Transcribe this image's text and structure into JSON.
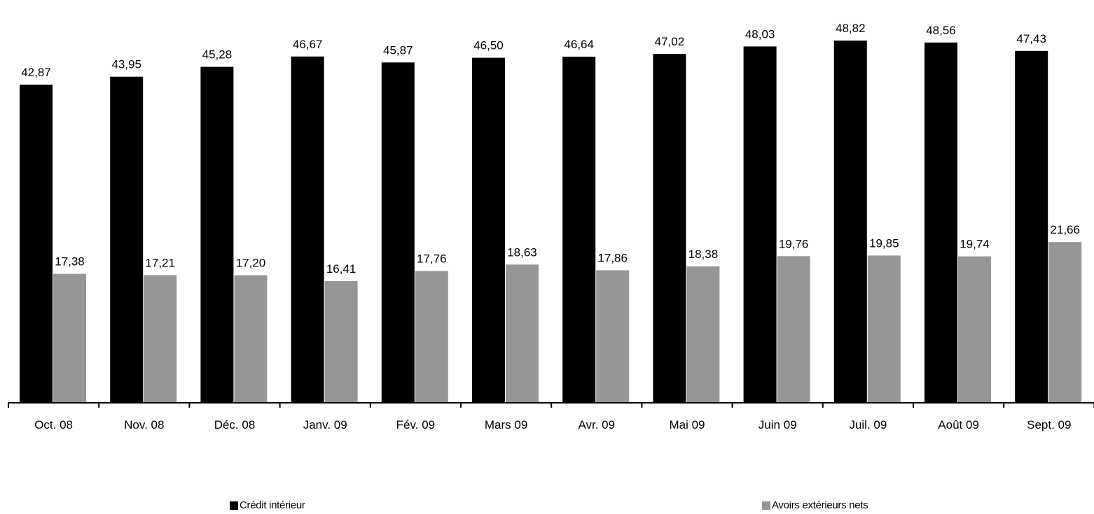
{
  "chart_data": {
    "type": "bar",
    "categories": [
      "Oct. 08",
      "Nov. 08",
      "Déc. 08",
      "Janv. 09",
      "Fév. 09",
      "Mars 09",
      "Avr. 09",
      "Mai 09",
      "Juin 09",
      "Juil. 09",
      "Août 09",
      "Sept. 09"
    ],
    "series": [
      {
        "name": "Crédit intérieur",
        "color": "#000000",
        "values": [
          42.87,
          43.95,
          45.28,
          46.67,
          45.87,
          46.5,
          46.64,
          47.02,
          48.03,
          48.82,
          48.56,
          47.43
        ],
        "labels": [
          "42,87",
          "43,95",
          "45,28",
          "46,67",
          "45,87",
          "46,50",
          "46,64",
          "47,02",
          "48,03",
          "48,82",
          "48,56",
          "47,43"
        ]
      },
      {
        "name": "Avoirs extérieurs nets",
        "color": "#969696",
        "values": [
          17.38,
          17.21,
          17.2,
          16.41,
          17.76,
          18.63,
          17.86,
          18.38,
          19.76,
          19.85,
          19.74,
          21.66
        ],
        "labels": [
          "17,38",
          "17,21",
          "17,20",
          "16,41",
          "17,76",
          "18,63",
          "17,86",
          "18,38",
          "19,76",
          "19,85",
          "19,74",
          "21,66"
        ]
      }
    ],
    "title": "",
    "xlabel": "",
    "ylabel": "",
    "grid": false,
    "legend_position": "bottom"
  }
}
